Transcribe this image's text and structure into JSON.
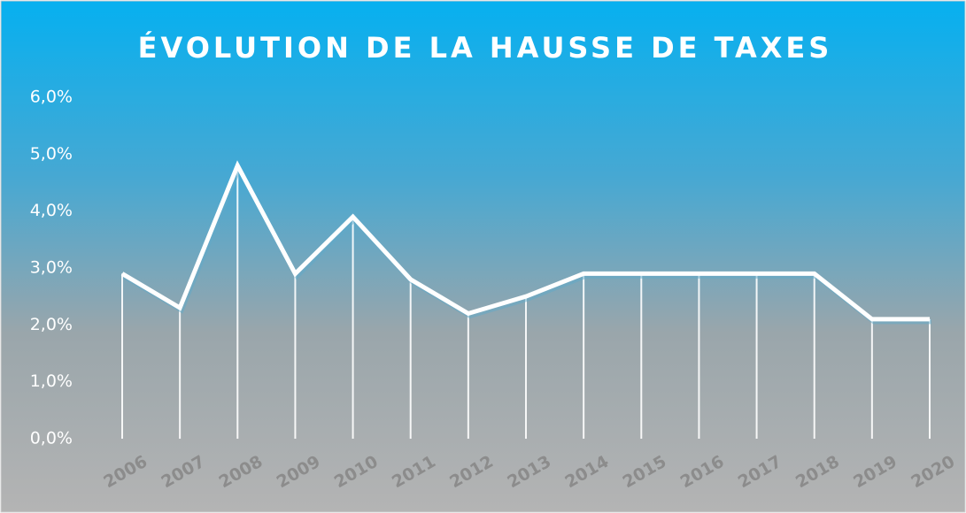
{
  "chart_data": {
    "type": "line",
    "title": "ÉVOLUTION DE LA HAUSSE DE TAXES",
    "categories": [
      "2006",
      "2007",
      "2008",
      "2009",
      "2010",
      "2011",
      "2012",
      "2013",
      "2014",
      "2015",
      "2016",
      "2017",
      "2018",
      "2019",
      "2020"
    ],
    "values": [
      2.9,
      2.3,
      4.8,
      2.9,
      3.9,
      2.8,
      2.2,
      2.5,
      2.9,
      2.9,
      2.9,
      2.9,
      2.9,
      2.1,
      2.1
    ],
    "color": "#ffffff",
    "drop_lines": true,
    "grid": false,
    "ylim": [
      0,
      6
    ],
    "yticks": [
      {
        "value": 0,
        "label": "0,0%"
      },
      {
        "value": 1,
        "label": "1,0%"
      },
      {
        "value": 2,
        "label": "2,0%"
      },
      {
        "value": 3,
        "label": "3,0%"
      },
      {
        "value": 4,
        "label": "4,0%"
      },
      {
        "value": 5,
        "label": "5,0%"
      },
      {
        "value": 6,
        "label": "6,0%"
      }
    ]
  }
}
